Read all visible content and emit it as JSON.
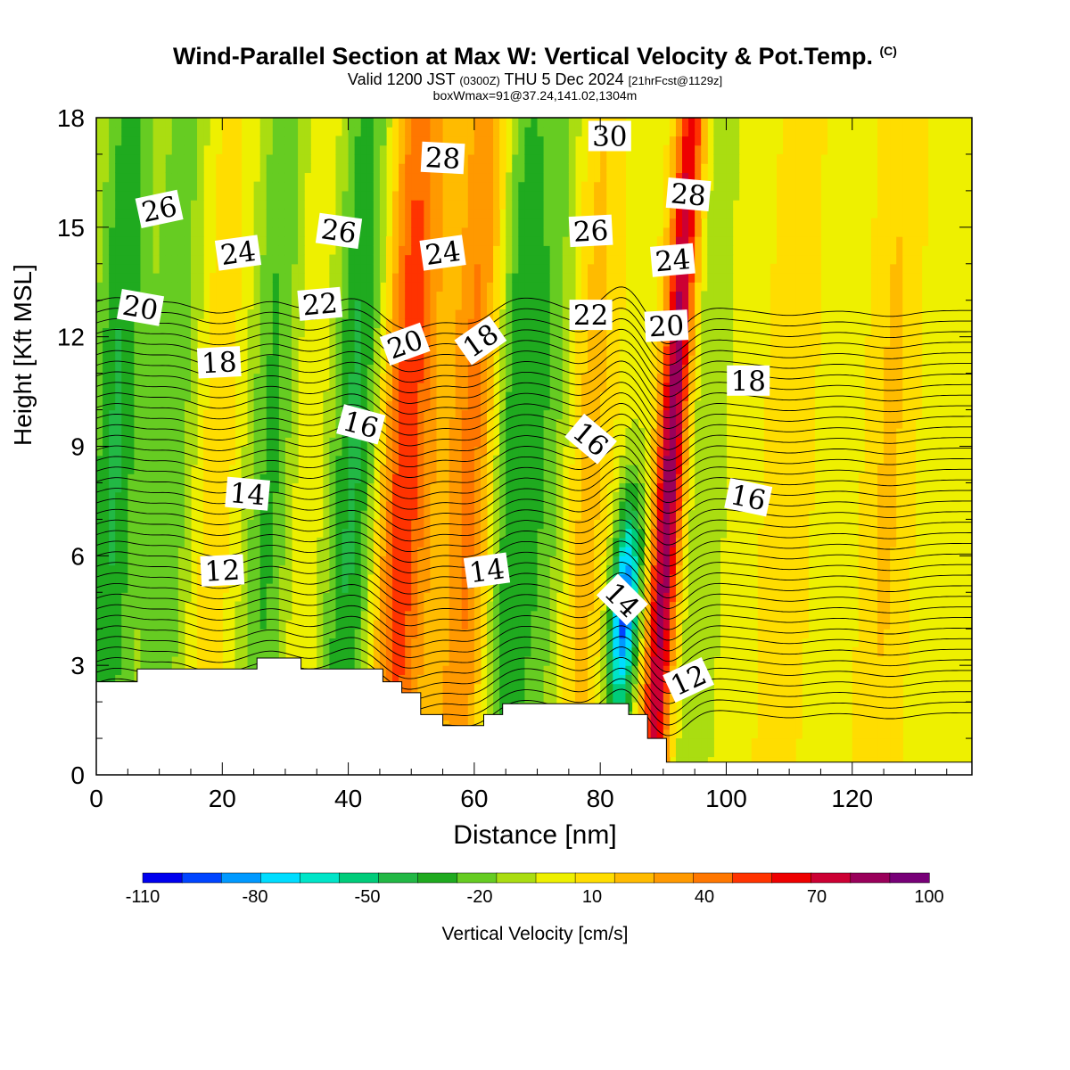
{
  "title": "Wind-Parallel Section at Max W: Vertical Velocity & Pot.Temp.",
  "copyright_mark": "(C)",
  "subtitle_parts": [
    "Valid 1200 JST ",
    "(0300Z)",
    " THU 5 Dec 2024 ",
    "[21hrFcst@1129z]"
  ],
  "subtitle2": "boxWmax=91@37.24,141.02,1304m",
  "chart_data": {
    "type": "heatmap",
    "xlabel": "Distance [nm]",
    "ylabel": "Height [Kft MSL]",
    "xlim": [
      0,
      139
    ],
    "ylim": [
      0,
      18
    ],
    "xticks": [
      0,
      20,
      40,
      60,
      80,
      100,
      120
    ],
    "yticks": [
      0,
      3,
      6,
      9,
      12,
      15,
      18
    ],
    "colorbar": {
      "label": "Vertical Velocity [cm/s]",
      "tick_labels": [
        "-110",
        "-80",
        "-50",
        "-20",
        "10",
        "40",
        "70",
        "100"
      ],
      "colors": [
        "#0000ee",
        "#0044ff",
        "#0099ff",
        "#00ddff",
        "#00e5c8",
        "#00cc7a",
        "#22b845",
        "#1faa1f",
        "#66cc22",
        "#aadd11",
        "#eef000",
        "#ffdd00",
        "#ffbb00",
        "#ff9900",
        "#ff7700",
        "#ff3300",
        "#ee0000",
        "#cc0033",
        "#99005a",
        "#770077"
      ]
    },
    "velocity_bands": [
      {
        "x": 3,
        "w": -38
      },
      {
        "x": 12,
        "w": -25
      },
      {
        "x": 19,
        "w": 12
      },
      {
        "x": 28,
        "w": -30
      },
      {
        "x": 33,
        "w": 8
      },
      {
        "x": 41,
        "w": -40
      },
      {
        "x": 49,
        "w": 55
      },
      {
        "x": 54,
        "w": 10
      },
      {
        "x": 60,
        "w": 42
      },
      {
        "x": 66,
        "w": -35
      },
      {
        "x": 72,
        "w": -22
      },
      {
        "x": 78,
        "w": 22
      },
      {
        "x": 84,
        "w": -95
      },
      {
        "x": 90,
        "w": 91
      },
      {
        "x": 96,
        "w": -15
      },
      {
        "x": 110,
        "w": 15
      },
      {
        "x": 126,
        "w": 18
      }
    ],
    "terrain": [
      [
        0,
        2.55
      ],
      [
        6.5,
        2.55
      ],
      [
        6.5,
        2.9
      ],
      [
        25.5,
        2.9
      ],
      [
        25.5,
        3.2
      ],
      [
        32.5,
        3.2
      ],
      [
        32.5,
        2.9
      ],
      [
        45.5,
        2.9
      ],
      [
        45.5,
        2.55
      ],
      [
        48.5,
        2.55
      ],
      [
        48.5,
        2.25
      ],
      [
        51.5,
        2.25
      ],
      [
        51.5,
        1.65
      ],
      [
        55,
        1.65
      ],
      [
        55,
        1.35
      ],
      [
        61.5,
        1.35
      ],
      [
        61.5,
        1.65
      ],
      [
        64.5,
        1.65
      ],
      [
        64.5,
        1.95
      ],
      [
        84.5,
        1.95
      ],
      [
        84.5,
        1.65
      ],
      [
        87.5,
        1.65
      ],
      [
        87.5,
        1.0
      ],
      [
        90.5,
        1.0
      ],
      [
        90.5,
        0.35
      ],
      [
        139,
        0.35
      ]
    ],
    "isentrope_levels": [
      11,
      11.5,
      12,
      12.5,
      13,
      13.5,
      14,
      14.5,
      15,
      15.5,
      16,
      16.5,
      17,
      17.5,
      18,
      18.5,
      19,
      19.5,
      20,
      20.5,
      21,
      21.5,
      22,
      22.5,
      23,
      23.5,
      24,
      24.5,
      25,
      25.5,
      26,
      26.5,
      27,
      27.5,
      28,
      28.5,
      29,
      29.5,
      30
    ],
    "contour_labels": [
      {
        "text": "26",
        "x": 10,
        "y": 15.5,
        "rot": -12
      },
      {
        "text": "24",
        "x": 22.5,
        "y": 14.3,
        "rot": -8
      },
      {
        "text": "20",
        "x": 7,
        "y": 12.8,
        "rot": 10
      },
      {
        "text": "18",
        "x": 19.5,
        "y": 11.3,
        "rot": -3
      },
      {
        "text": "14",
        "x": 24,
        "y": 7.7,
        "rot": 5
      },
      {
        "text": "12",
        "x": 20,
        "y": 5.6,
        "rot": -3
      },
      {
        "text": "26",
        "x": 38.5,
        "y": 14.9,
        "rot": 8
      },
      {
        "text": "22",
        "x": 35.5,
        "y": 12.9,
        "rot": -5
      },
      {
        "text": "16",
        "x": 42,
        "y": 9.6,
        "rot": 15
      },
      {
        "text": "20",
        "x": 49,
        "y": 11.8,
        "rot": -20
      },
      {
        "text": "28",
        "x": 55,
        "y": 16.9,
        "rot": 3
      },
      {
        "text": "24",
        "x": 55,
        "y": 14.3,
        "rot": -8
      },
      {
        "text": "18",
        "x": 61,
        "y": 11.9,
        "rot": -35
      },
      {
        "text": "14",
        "x": 62,
        "y": 5.6,
        "rot": -8
      },
      {
        "text": "30",
        "x": 81.5,
        "y": 17.5,
        "rot": 0
      },
      {
        "text": "26",
        "x": 78.5,
        "y": 14.9,
        "rot": -3
      },
      {
        "text": "22",
        "x": 78.5,
        "y": 12.6,
        "rot": 0
      },
      {
        "text": "16",
        "x": 78.5,
        "y": 9.2,
        "rot": 40
      },
      {
        "text": "14",
        "x": 83.5,
        "y": 4.8,
        "rot": 45
      },
      {
        "text": "28",
        "x": 94,
        "y": 15.9,
        "rot": 5
      },
      {
        "text": "24",
        "x": 91.5,
        "y": 14.1,
        "rot": -5
      },
      {
        "text": "20",
        "x": 90.5,
        "y": 12.3,
        "rot": -3
      },
      {
        "text": "18",
        "x": 103.5,
        "y": 10.8,
        "rot": 0
      },
      {
        "text": "16",
        "x": 103.5,
        "y": 7.6,
        "rot": 12
      },
      {
        "text": "12",
        "x": 94,
        "y": 2.6,
        "rot": -25
      }
    ]
  }
}
